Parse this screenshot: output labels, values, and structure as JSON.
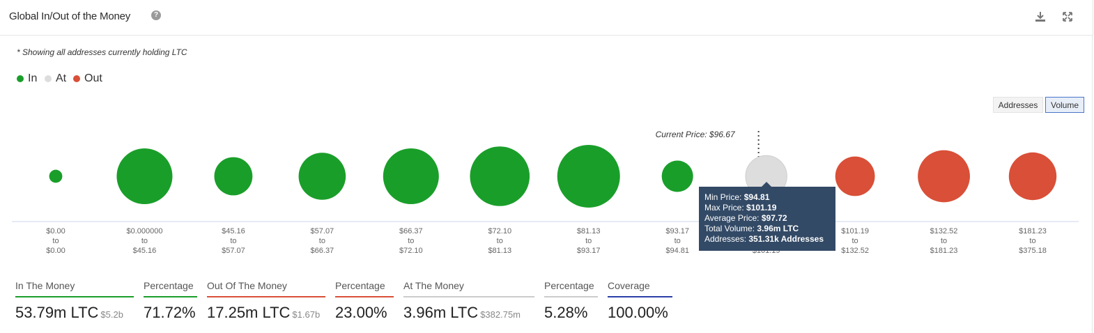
{
  "header": {
    "title": "Global In/Out of the Money",
    "help_glyph": "?",
    "icons": [
      "download-icon",
      "fullscreen-icon"
    ]
  },
  "note": "* Showing all addresses currently holding LTC",
  "legend": [
    {
      "label": "In",
      "color": "#1a9e2a"
    },
    {
      "label": "At",
      "color": "#dddddd"
    },
    {
      "label": "Out",
      "color": "#d94f38"
    }
  ],
  "toggle": {
    "addresses": "Addresses",
    "volume": "Volume",
    "selected": "Volume"
  },
  "chart_data": {
    "type": "scatter",
    "current_price_label": "Current Price: $96.67",
    "current_price_bucket_index": 8,
    "size_metric": "Volume",
    "buckets": [
      {
        "from": "$0.00",
        "to": "$0.00",
        "status": "In",
        "rel_size": 0.21
      },
      {
        "from": "$0.000000",
        "to": "$45.16",
        "status": "In",
        "rel_size": 0.89
      },
      {
        "from": "$45.16",
        "to": "$57.07",
        "status": "In",
        "rel_size": 0.61
      },
      {
        "from": "$57.07",
        "to": "$66.37",
        "status": "In",
        "rel_size": 0.75
      },
      {
        "from": "$66.37",
        "to": "$72.10",
        "status": "In",
        "rel_size": 0.89
      },
      {
        "from": "$72.10",
        "to": "$81.13",
        "status": "In",
        "rel_size": 0.95
      },
      {
        "from": "$81.13",
        "to": "$93.17",
        "status": "In",
        "rel_size": 1.0
      },
      {
        "from": "$93.17",
        "to": "$94.81",
        "status": "In",
        "rel_size": 0.5
      },
      {
        "from": "$94.81",
        "to": "$101.19",
        "status": "At",
        "rel_size": 0.66
      },
      {
        "from": "$101.19",
        "to": "$132.52",
        "status": "Out",
        "rel_size": 0.63
      },
      {
        "from": "$132.52",
        "to": "$181.23",
        "status": "Out",
        "rel_size": 0.83
      },
      {
        "from": "$181.23",
        "to": "$375.18",
        "status": "Out",
        "rel_size": 0.76
      }
    ],
    "tick_connector": "to"
  },
  "tooltip": {
    "min_label": "Min Price:",
    "min_value": "$94.81",
    "max_label": "Max Price:",
    "max_value": "$101.19",
    "avg_label": "Average Price:",
    "avg_value": "$97.72",
    "vol_label": "Total Volume:",
    "vol_value": "3.96m LTC",
    "addr_label": "Addresses:",
    "addr_value": "351.31k Addresses"
  },
  "stats": [
    {
      "label": "In The Money",
      "value": "53.79m LTC",
      "sub": "$5.2b",
      "color": "#1a9e2a"
    },
    {
      "label": "Percentage",
      "value": "71.72%",
      "sub": "",
      "color": "#1a9e2a"
    },
    {
      "label": "Out Of The Money",
      "value": "17.25m LTC",
      "sub": "$1.67b",
      "color": "#d94f38"
    },
    {
      "label": "Percentage",
      "value": "23.00%",
      "sub": "",
      "color": "#d94f38"
    },
    {
      "label": "At The Money",
      "value": "3.96m LTC",
      "sub": "$382.75m",
      "color": "#cccccc"
    },
    {
      "label": "Percentage",
      "value": "5.28%",
      "sub": "",
      "color": "#cccccc"
    },
    {
      "label": "Coverage",
      "value": "100.00%",
      "sub": "",
      "color": "#2a3fa8"
    }
  ]
}
